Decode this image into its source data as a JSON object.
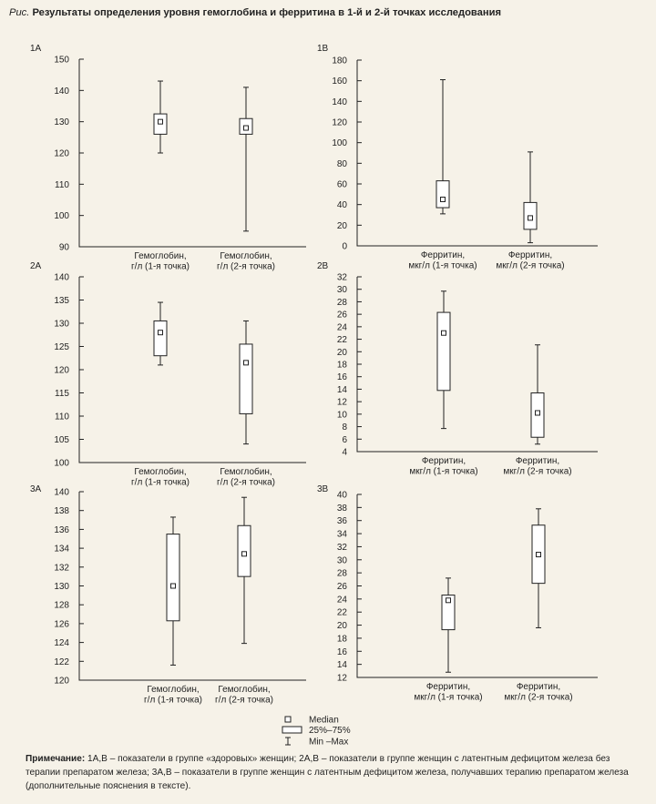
{
  "figure": {
    "prefix": "Рис.",
    "title": "Результаты определения уровня гемоглобина и ферритина в 1-й и 2-й точках исследования"
  },
  "legend": {
    "median": "Median",
    "box": "25%–75%",
    "range": "Min –Max"
  },
  "note": {
    "label": "Примечание:",
    "text": " 1А,В – показатели в группе «здоровых» женщин; 2А,В – показатели в группе женщин с латентным дефицитом железа без терапии препаратом железа; 3А,В – показатели в группе женщин с латентным дефицитом железа, получавших терапию препаратом железа (дополнительные пояснения в тексте)."
  },
  "chart_data": [
    {
      "id": "1A",
      "panel": "1А",
      "type": "boxplot",
      "ylim": [
        90,
        150
      ],
      "yticks": [
        90,
        100,
        110,
        120,
        130,
        140,
        150
      ],
      "categories": [
        [
          "Гемоглобин,",
          "г/л (1-я точка)"
        ],
        [
          "Гемоглобин,",
          "г/л (2-я точка)"
        ]
      ],
      "boxes": [
        {
          "min": 120,
          "q1": 126,
          "median": 130,
          "q3": 132.5,
          "max": 143
        },
        {
          "min": 95,
          "q1": 126,
          "median": 128,
          "q3": 131,
          "max": 141
        }
      ]
    },
    {
      "id": "1B",
      "panel": "1В",
      "type": "boxplot",
      "ylim": [
        0,
        180
      ],
      "yticks": [
        0,
        20,
        40,
        60,
        80,
        100,
        120,
        140,
        160,
        180
      ],
      "categories": [
        [
          "Ферритин,",
          "мкг/л (1-я точка)"
        ],
        [
          "Ферритин,",
          "мкг/л (2-я точка)"
        ]
      ],
      "boxes": [
        {
          "min": 31,
          "q1": 37,
          "median": 45,
          "q3": 63,
          "max": 161
        },
        {
          "min": 3,
          "q1": 16,
          "median": 27,
          "q3": 42,
          "max": 91
        }
      ]
    },
    {
      "id": "2A",
      "panel": "2А",
      "type": "boxplot",
      "ylim": [
        100,
        140
      ],
      "yticks": [
        100,
        105,
        110,
        115,
        120,
        125,
        130,
        135,
        140
      ],
      "categories": [
        [
          "Гемоглобин,",
          "г/л (1-я точка)"
        ],
        [
          "Гемоглобин,",
          "г/л (2-я точка)"
        ]
      ],
      "boxes": [
        {
          "min": 121,
          "q1": 123,
          "median": 128,
          "q3": 130.5,
          "max": 134.5
        },
        {
          "min": 104,
          "q1": 110.5,
          "median": 121.5,
          "q3": 125.5,
          "max": 130.5
        }
      ]
    },
    {
      "id": "2B",
      "panel": "2В",
      "type": "boxplot",
      "ylim": [
        4,
        32
      ],
      "yticks": [
        4,
        6,
        8,
        10,
        12,
        14,
        16,
        18,
        20,
        22,
        24,
        26,
        28,
        30,
        32
      ],
      "categories": [
        [
          "Ферритин,",
          "мкг/л (1-я точка)"
        ],
        [
          "Ферритин,",
          "мкг/л (2-я точка)"
        ]
      ],
      "boxes": [
        {
          "min": 7.7,
          "q1": 13.8,
          "median": 23,
          "q3": 26.3,
          "max": 29.7
        },
        {
          "min": 5.2,
          "q1": 6.3,
          "median": 10.2,
          "q3": 13.4,
          "max": 21.1
        }
      ]
    },
    {
      "id": "3A",
      "panel": "3А",
      "type": "boxplot",
      "ylim": [
        120,
        140
      ],
      "yticks": [
        120,
        122,
        124,
        126,
        128,
        130,
        132,
        134,
        136,
        138,
        140
      ],
      "categories": [
        [
          "Гемоглобин,",
          "г/л (1-я точка)"
        ],
        [
          "Гемоглобин,",
          "г/л (2-я точка)"
        ]
      ],
      "boxes": [
        {
          "min": 121.6,
          "q1": 126.3,
          "median": 130,
          "q3": 135.5,
          "max": 137.3
        },
        {
          "min": 123.9,
          "q1": 131,
          "median": 133.4,
          "q3": 136.4,
          "max": 139.4
        }
      ]
    },
    {
      "id": "3B",
      "panel": "3В",
      "type": "boxplot",
      "ylim": [
        12,
        40
      ],
      "yticks": [
        12,
        14,
        16,
        18,
        20,
        22,
        24,
        26,
        28,
        30,
        32,
        34,
        36,
        38,
        40
      ],
      "categories": [
        [
          "Ферритин,",
          "мкг/л (1-я точка)"
        ],
        [
          "Ферритин,",
          "мкг/л (2-я точка)"
        ]
      ],
      "boxes": [
        {
          "min": 12.8,
          "q1": 19.3,
          "median": 23.8,
          "q3": 24.6,
          "max": 27.2
        },
        {
          "min": 19.6,
          "q1": 26.4,
          "median": 30.8,
          "q3": 35.3,
          "max": 37.8
        }
      ]
    }
  ]
}
